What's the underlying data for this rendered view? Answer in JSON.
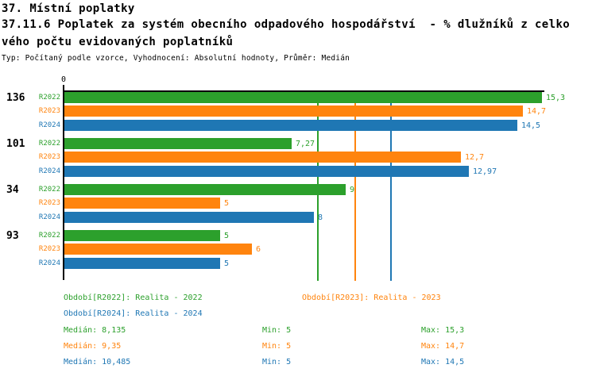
{
  "header": {
    "line1": "37. Místní poplatky",
    "line2": "37.11.6 Poplatek za systém obecního odpadového hospodářství  - % dlužníků z celko",
    "line3": "vého počtu evidovaných poplatníků",
    "meta": "Typ: Počítaný podle vzorce, Vyhodnocení: Absolutní hodnoty, Průměr: Medián"
  },
  "colors": {
    "r2022_green": "#2CA02C",
    "r2023_orange": "#FF840E",
    "r2024_blue": "#1F77B4",
    "axis_black": "#000000"
  },
  "chart_data": {
    "type": "bar",
    "orientation": "horizontal",
    "xlim": [
      0,
      15.3
    ],
    "zero_tick_label": "0",
    "grid": false,
    "series": [
      "R2022",
      "R2023",
      "R2024"
    ],
    "series_colors": [
      "#2CA02C",
      "#FF840E",
      "#1F77B4"
    ],
    "groups": [
      {
        "label": "136",
        "values": [
          15.3,
          14.7,
          14.5
        ],
        "display": [
          "15,3",
          "14,7",
          "14,5"
        ]
      },
      {
        "label": "101",
        "values": [
          7.27,
          12.7,
          12.97
        ],
        "display": [
          "7,27",
          "12,7",
          "12,97"
        ]
      },
      {
        "label": "34",
        "values": [
          9,
          5,
          8
        ],
        "display": [
          "9",
          "5",
          "8"
        ]
      },
      {
        "label": "93",
        "values": [
          5,
          6,
          5
        ],
        "display": [
          "5",
          "6",
          "5"
        ]
      }
    ],
    "median_lines": [
      8.135,
      9.35,
      10.485
    ],
    "legend": [
      {
        "label": "Období[R2022]: Realita - 2022",
        "color": "#2CA02C"
      },
      {
        "label": "Období[R2023]: Realita - 2023",
        "color": "#FF840E"
      },
      {
        "label": "Období[R2024]: Realita - 2024",
        "color": "#1F77B4"
      }
    ],
    "stat_labels": {
      "median": "Medián",
      "min": "Min",
      "max": "Max"
    },
    "stats": [
      {
        "median": "8,135",
        "min": "5",
        "max": "15,3"
      },
      {
        "median": "9,35",
        "min": "5",
        "max": "14,7"
      },
      {
        "median": "10,485",
        "min": "5",
        "max": "14,5"
      }
    ]
  }
}
